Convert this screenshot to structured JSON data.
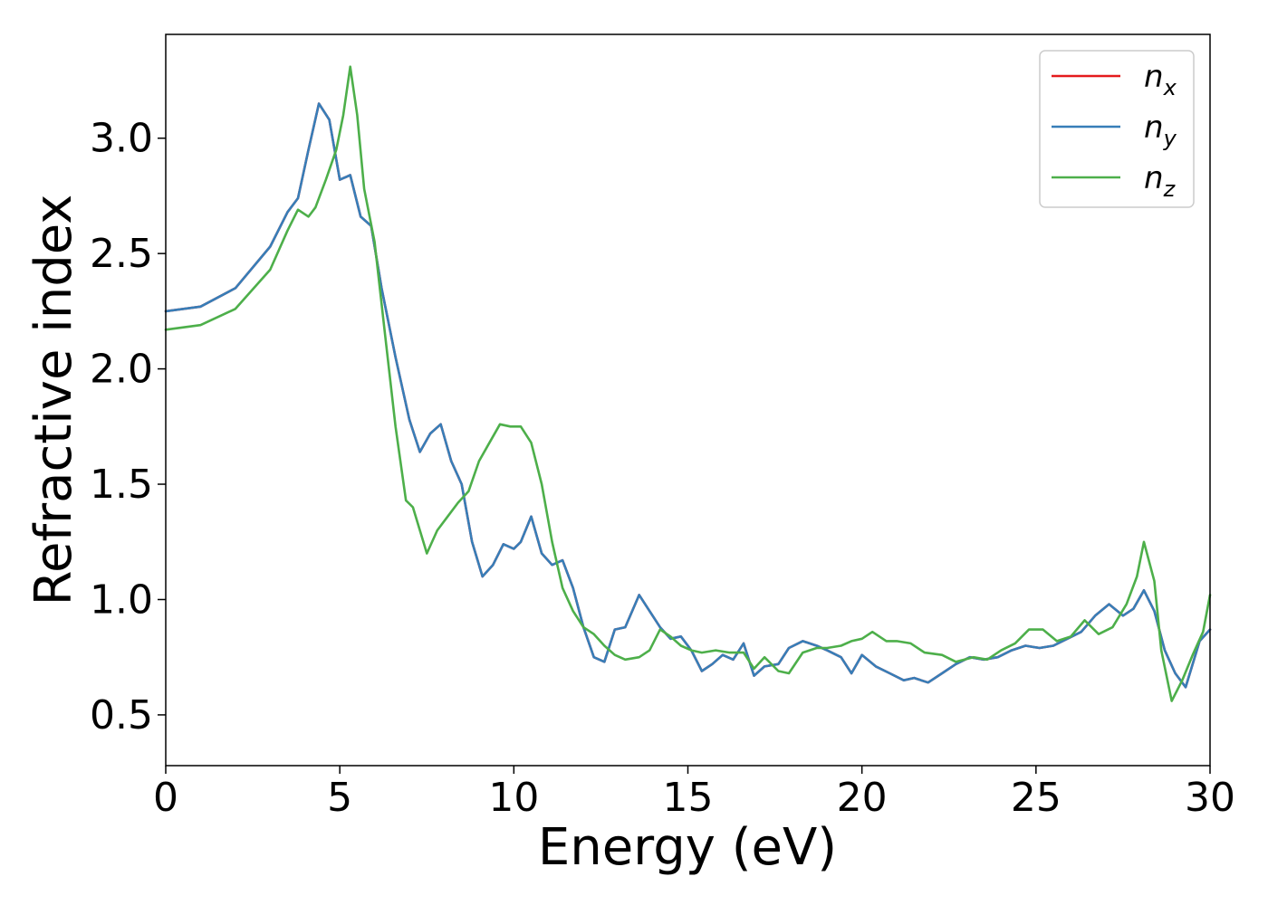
{
  "chart_data": {
    "type": "line",
    "title": "",
    "xlabel": "Energy (eV)",
    "ylabel": "Refractive index",
    "xlim": [
      0,
      30
    ],
    "ylim": [
      0.28,
      3.45
    ],
    "xticks": [
      0,
      5,
      10,
      15,
      20,
      25,
      30
    ],
    "yticks": [
      0.5,
      1.0,
      1.5,
      2.0,
      2.5,
      3.0
    ],
    "xtick_labels": [
      "0",
      "5",
      "10",
      "15",
      "20",
      "25",
      "30"
    ],
    "ytick_labels": [
      "0.5",
      "1.0",
      "1.5",
      "2.0",
      "2.5",
      "3.0"
    ],
    "grid": false,
    "legend_position": "top-right",
    "series": [
      {
        "name": "n_x",
        "label_base": "n",
        "label_sub": "x",
        "color": "#e41a1c",
        "points": [
          [
            0,
            2.25
          ],
          [
            1,
            2.27
          ],
          [
            2,
            2.35
          ],
          [
            3,
            2.53
          ],
          [
            3.5,
            2.68
          ],
          [
            3.8,
            2.74
          ],
          [
            4.1,
            2.95
          ],
          [
            4.4,
            3.15
          ],
          [
            4.7,
            3.08
          ],
          [
            5.0,
            2.82
          ],
          [
            5.3,
            2.84
          ],
          [
            5.6,
            2.66
          ],
          [
            5.9,
            2.62
          ],
          [
            6.2,
            2.35
          ],
          [
            6.6,
            2.05
          ],
          [
            7.0,
            1.78
          ],
          [
            7.3,
            1.64
          ],
          [
            7.6,
            1.72
          ],
          [
            7.9,
            1.76
          ],
          [
            8.2,
            1.6
          ],
          [
            8.5,
            1.5
          ],
          [
            8.8,
            1.25
          ],
          [
            9.1,
            1.1
          ],
          [
            9.4,
            1.15
          ],
          [
            9.7,
            1.24
          ],
          [
            10.0,
            1.22
          ],
          [
            10.2,
            1.25
          ],
          [
            10.5,
            1.36
          ],
          [
            10.8,
            1.2
          ],
          [
            11.1,
            1.15
          ],
          [
            11.4,
            1.17
          ],
          [
            11.7,
            1.05
          ],
          [
            12.0,
            0.88
          ],
          [
            12.3,
            0.75
          ],
          [
            12.6,
            0.73
          ],
          [
            12.9,
            0.87
          ],
          [
            13.2,
            0.88
          ],
          [
            13.6,
            1.02
          ],
          [
            13.9,
            0.95
          ],
          [
            14.2,
            0.88
          ],
          [
            14.5,
            0.83
          ],
          [
            14.8,
            0.84
          ],
          [
            15.1,
            0.78
          ],
          [
            15.4,
            0.69
          ],
          [
            15.7,
            0.72
          ],
          [
            16.0,
            0.76
          ],
          [
            16.3,
            0.74
          ],
          [
            16.6,
            0.81
          ],
          [
            16.9,
            0.67
          ],
          [
            17.2,
            0.71
          ],
          [
            17.6,
            0.72
          ],
          [
            17.9,
            0.79
          ],
          [
            18.3,
            0.82
          ],
          [
            18.7,
            0.8
          ],
          [
            19.0,
            0.78
          ],
          [
            19.4,
            0.75
          ],
          [
            19.7,
            0.68
          ],
          [
            20.0,
            0.76
          ],
          [
            20.4,
            0.71
          ],
          [
            20.8,
            0.68
          ],
          [
            21.2,
            0.65
          ],
          [
            21.5,
            0.66
          ],
          [
            21.9,
            0.64
          ],
          [
            22.3,
            0.68
          ],
          [
            22.7,
            0.72
          ],
          [
            23.1,
            0.75
          ],
          [
            23.5,
            0.74
          ],
          [
            23.9,
            0.75
          ],
          [
            24.3,
            0.78
          ],
          [
            24.7,
            0.8
          ],
          [
            25.1,
            0.79
          ],
          [
            25.5,
            0.8
          ],
          [
            25.9,
            0.83
          ],
          [
            26.3,
            0.86
          ],
          [
            26.7,
            0.93
          ],
          [
            27.1,
            0.98
          ],
          [
            27.5,
            0.93
          ],
          [
            27.8,
            0.96
          ],
          [
            28.1,
            1.04
          ],
          [
            28.4,
            0.95
          ],
          [
            28.7,
            0.78
          ],
          [
            29.0,
            0.68
          ],
          [
            29.3,
            0.62
          ],
          [
            29.7,
            0.82
          ],
          [
            30.0,
            0.87
          ]
        ]
      },
      {
        "name": "n_y",
        "label_base": "n",
        "label_sub": "y",
        "color": "#377eb8",
        "points": [
          [
            0,
            2.25
          ],
          [
            1,
            2.27
          ],
          [
            2,
            2.35
          ],
          [
            3,
            2.53
          ],
          [
            3.5,
            2.68
          ],
          [
            3.8,
            2.74
          ],
          [
            4.1,
            2.95
          ],
          [
            4.4,
            3.15
          ],
          [
            4.7,
            3.08
          ],
          [
            5.0,
            2.82
          ],
          [
            5.3,
            2.84
          ],
          [
            5.6,
            2.66
          ],
          [
            5.9,
            2.62
          ],
          [
            6.2,
            2.35
          ],
          [
            6.6,
            2.05
          ],
          [
            7.0,
            1.78
          ],
          [
            7.3,
            1.64
          ],
          [
            7.6,
            1.72
          ],
          [
            7.9,
            1.76
          ],
          [
            8.2,
            1.6
          ],
          [
            8.5,
            1.5
          ],
          [
            8.8,
            1.25
          ],
          [
            9.1,
            1.1
          ],
          [
            9.4,
            1.15
          ],
          [
            9.7,
            1.24
          ],
          [
            10.0,
            1.22
          ],
          [
            10.2,
            1.25
          ],
          [
            10.5,
            1.36
          ],
          [
            10.8,
            1.2
          ],
          [
            11.1,
            1.15
          ],
          [
            11.4,
            1.17
          ],
          [
            11.7,
            1.05
          ],
          [
            12.0,
            0.88
          ],
          [
            12.3,
            0.75
          ],
          [
            12.6,
            0.73
          ],
          [
            12.9,
            0.87
          ],
          [
            13.2,
            0.88
          ],
          [
            13.6,
            1.02
          ],
          [
            13.9,
            0.95
          ],
          [
            14.2,
            0.88
          ],
          [
            14.5,
            0.83
          ],
          [
            14.8,
            0.84
          ],
          [
            15.1,
            0.78
          ],
          [
            15.4,
            0.69
          ],
          [
            15.7,
            0.72
          ],
          [
            16.0,
            0.76
          ],
          [
            16.3,
            0.74
          ],
          [
            16.6,
            0.81
          ],
          [
            16.9,
            0.67
          ],
          [
            17.2,
            0.71
          ],
          [
            17.6,
            0.72
          ],
          [
            17.9,
            0.79
          ],
          [
            18.3,
            0.82
          ],
          [
            18.7,
            0.8
          ],
          [
            19.0,
            0.78
          ],
          [
            19.4,
            0.75
          ],
          [
            19.7,
            0.68
          ],
          [
            20.0,
            0.76
          ],
          [
            20.4,
            0.71
          ],
          [
            20.8,
            0.68
          ],
          [
            21.2,
            0.65
          ],
          [
            21.5,
            0.66
          ],
          [
            21.9,
            0.64
          ],
          [
            22.3,
            0.68
          ],
          [
            22.7,
            0.72
          ],
          [
            23.1,
            0.75
          ],
          [
            23.5,
            0.74
          ],
          [
            23.9,
            0.75
          ],
          [
            24.3,
            0.78
          ],
          [
            24.7,
            0.8
          ],
          [
            25.1,
            0.79
          ],
          [
            25.5,
            0.8
          ],
          [
            25.9,
            0.83
          ],
          [
            26.3,
            0.86
          ],
          [
            26.7,
            0.93
          ],
          [
            27.1,
            0.98
          ],
          [
            27.5,
            0.93
          ],
          [
            27.8,
            0.96
          ],
          [
            28.1,
            1.04
          ],
          [
            28.4,
            0.95
          ],
          [
            28.7,
            0.78
          ],
          [
            29.0,
            0.68
          ],
          [
            29.3,
            0.62
          ],
          [
            29.7,
            0.82
          ],
          [
            30.0,
            0.87
          ]
        ]
      },
      {
        "name": "n_z",
        "label_base": "n",
        "label_sub": "z",
        "color": "#4daf4a",
        "points": [
          [
            0,
            2.17
          ],
          [
            1,
            2.19
          ],
          [
            2,
            2.26
          ],
          [
            3,
            2.43
          ],
          [
            3.5,
            2.6
          ],
          [
            3.8,
            2.69
          ],
          [
            4.1,
            2.66
          ],
          [
            4.3,
            2.7
          ],
          [
            4.6,
            2.82
          ],
          [
            4.9,
            2.95
          ],
          [
            5.1,
            3.1
          ],
          [
            5.3,
            3.31
          ],
          [
            5.5,
            3.1
          ],
          [
            5.7,
            2.78
          ],
          [
            6.0,
            2.55
          ],
          [
            6.3,
            2.15
          ],
          [
            6.6,
            1.75
          ],
          [
            6.9,
            1.43
          ],
          [
            7.1,
            1.4
          ],
          [
            7.3,
            1.3
          ],
          [
            7.5,
            1.2
          ],
          [
            7.8,
            1.3
          ],
          [
            8.1,
            1.36
          ],
          [
            8.4,
            1.42
          ],
          [
            8.7,
            1.47
          ],
          [
            9.0,
            1.6
          ],
          [
            9.3,
            1.68
          ],
          [
            9.6,
            1.76
          ],
          [
            9.9,
            1.75
          ],
          [
            10.2,
            1.75
          ],
          [
            10.5,
            1.68
          ],
          [
            10.8,
            1.5
          ],
          [
            11.1,
            1.25
          ],
          [
            11.4,
            1.05
          ],
          [
            11.7,
            0.95
          ],
          [
            12.0,
            0.88
          ],
          [
            12.3,
            0.85
          ],
          [
            12.6,
            0.8
          ],
          [
            12.9,
            0.76
          ],
          [
            13.2,
            0.74
          ],
          [
            13.6,
            0.75
          ],
          [
            13.9,
            0.78
          ],
          [
            14.2,
            0.87
          ],
          [
            14.5,
            0.84
          ],
          [
            14.8,
            0.8
          ],
          [
            15.1,
            0.78
          ],
          [
            15.4,
            0.77
          ],
          [
            15.8,
            0.78
          ],
          [
            16.2,
            0.77
          ],
          [
            16.6,
            0.77
          ],
          [
            16.9,
            0.7
          ],
          [
            17.2,
            0.75
          ],
          [
            17.6,
            0.69
          ],
          [
            17.9,
            0.68
          ],
          [
            18.3,
            0.77
          ],
          [
            18.7,
            0.79
          ],
          [
            19.0,
            0.79
          ],
          [
            19.4,
            0.8
          ],
          [
            19.7,
            0.82
          ],
          [
            20.0,
            0.83
          ],
          [
            20.3,
            0.86
          ],
          [
            20.7,
            0.82
          ],
          [
            21.0,
            0.82
          ],
          [
            21.4,
            0.81
          ],
          [
            21.8,
            0.77
          ],
          [
            22.3,
            0.76
          ],
          [
            22.7,
            0.73
          ],
          [
            23.2,
            0.75
          ],
          [
            23.6,
            0.74
          ],
          [
            24.0,
            0.78
          ],
          [
            24.4,
            0.81
          ],
          [
            24.8,
            0.87
          ],
          [
            25.2,
            0.87
          ],
          [
            25.6,
            0.82
          ],
          [
            26.0,
            0.84
          ],
          [
            26.4,
            0.91
          ],
          [
            26.8,
            0.85
          ],
          [
            27.2,
            0.88
          ],
          [
            27.6,
            0.98
          ],
          [
            27.9,
            1.1
          ],
          [
            28.1,
            1.25
          ],
          [
            28.4,
            1.08
          ],
          [
            28.6,
            0.78
          ],
          [
            28.9,
            0.56
          ],
          [
            29.2,
            0.65
          ],
          [
            29.5,
            0.76
          ],
          [
            29.8,
            0.86
          ],
          [
            30.0,
            1.02
          ]
        ]
      }
    ]
  }
}
